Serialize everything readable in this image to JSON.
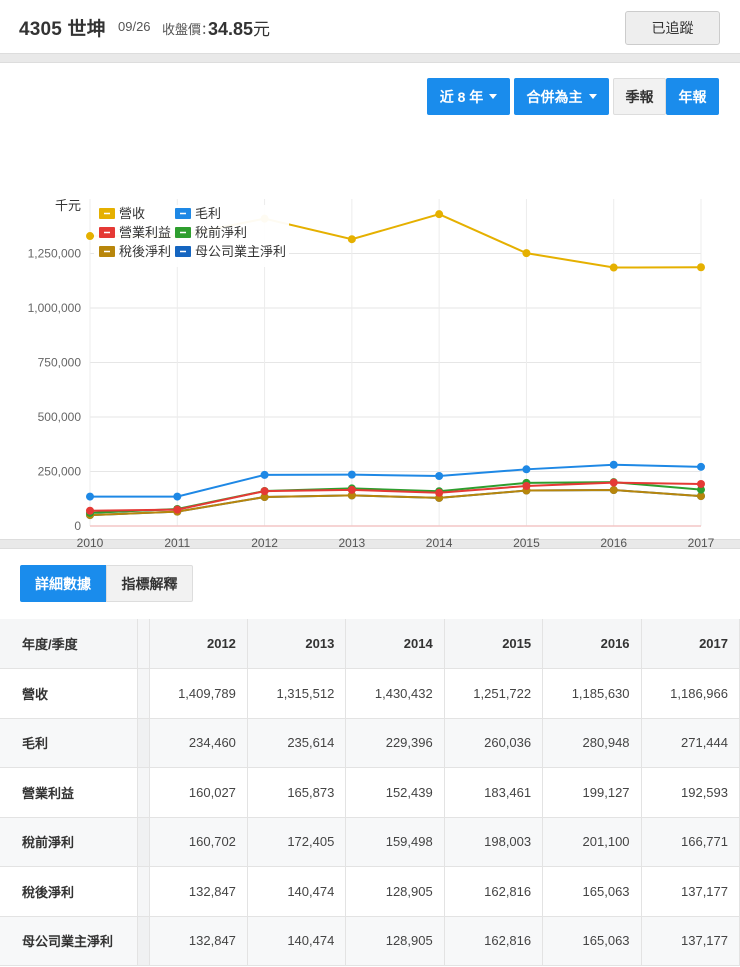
{
  "header": {
    "title": "4305 世坤",
    "date": "09/26",
    "price_label": "收盤價：",
    "price": "34.85",
    "currency": "元",
    "track_button": "已追蹤"
  },
  "controls": {
    "period": "近 8 年",
    "basis": "合併為主",
    "quarterly": "季報",
    "annual": "年報"
  },
  "tabs": {
    "detail": "詳細數據",
    "explain": "指標解釋"
  },
  "colors": {
    "revenue": "#E5B000",
    "gross": "#1E88E5",
    "operating": "#E53935",
    "pretax": "#2E9E2E",
    "aftertax": "#B8860B",
    "parent": "#1565C0",
    "accent": "#1a8cec"
  },
  "chart_data": {
    "type": "line",
    "ylabel": "千元",
    "x": [
      "2010",
      "2011",
      "2012",
      "2013",
      "2014",
      "2015",
      "2016",
      "2017"
    ],
    "ylim": [
      0,
      1500000
    ],
    "yticks": [
      "0",
      "250,000",
      "500,000",
      "750,000",
      "1,000,000",
      "1,250,000"
    ],
    "grid": true,
    "legend_position": "top-left",
    "series": [
      {
        "name": "營收",
        "key": "revenue",
        "values": [
          1330000,
          1330000,
          1409789,
          1315512,
          1430432,
          1251722,
          1185630,
          1186966
        ]
      },
      {
        "name": "毛利",
        "key": "gross",
        "values": [
          135000,
          135000,
          234460,
          235614,
          229396,
          260036,
          280948,
          271444
        ]
      },
      {
        "name": "營業利益",
        "key": "operating",
        "values": [
          70000,
          75000,
          160027,
          165873,
          152439,
          183461,
          199127,
          192593
        ]
      },
      {
        "name": "稅前淨利",
        "key": "pretax",
        "values": [
          60000,
          78000,
          160702,
          172405,
          159498,
          198003,
          201100,
          166771
        ]
      },
      {
        "name": "稅後淨利",
        "key": "aftertax",
        "values": [
          50000,
          66000,
          132847,
          140474,
          128905,
          162816,
          165063,
          137177
        ]
      },
      {
        "name": "母公司業主淨利",
        "key": "parent",
        "values": [
          50000,
          66000,
          132847,
          140474,
          128905,
          162816,
          165063,
          137177
        ]
      }
    ]
  },
  "table": {
    "corner": "年度/季度",
    "years": [
      "2012",
      "2013",
      "2014",
      "2015",
      "2016",
      "2017"
    ],
    "rows": [
      {
        "label": "營收",
        "values": [
          "1,409,789",
          "1,315,512",
          "1,430,432",
          "1,251,722",
          "1,185,630",
          "1,186,966"
        ]
      },
      {
        "label": "毛利",
        "values": [
          "234,460",
          "235,614",
          "229,396",
          "260,036",
          "280,948",
          "271,444"
        ]
      },
      {
        "label": "營業利益",
        "values": [
          "160,027",
          "165,873",
          "152,439",
          "183,461",
          "199,127",
          "192,593"
        ]
      },
      {
        "label": "稅前淨利",
        "values": [
          "160,702",
          "172,405",
          "159,498",
          "198,003",
          "201,100",
          "166,771"
        ]
      },
      {
        "label": "稅後淨利",
        "values": [
          "132,847",
          "140,474",
          "128,905",
          "162,816",
          "165,063",
          "137,177"
        ]
      },
      {
        "label": "母公司業主淨利",
        "values": [
          "132,847",
          "140,474",
          "128,905",
          "162,816",
          "165,063",
          "137,177"
        ]
      }
    ]
  }
}
